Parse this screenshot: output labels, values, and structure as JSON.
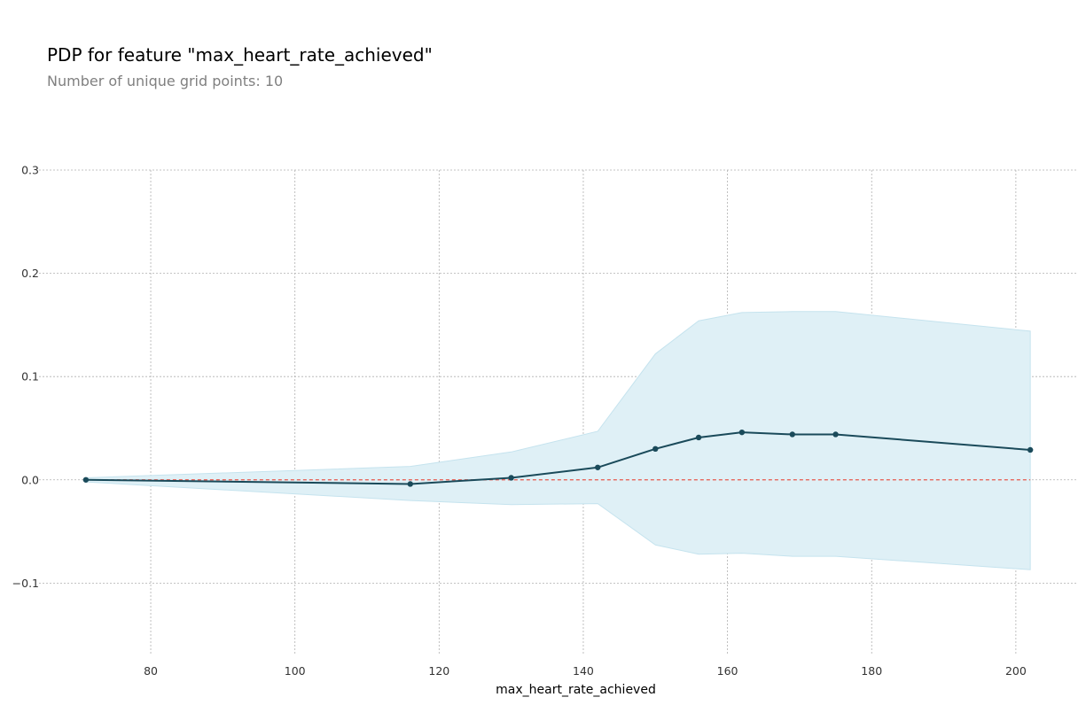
{
  "chart_data": {
    "type": "line",
    "title": "PDP for feature \"max_heart_rate_achieved\"",
    "subtitle": "Number of unique grid points: 10",
    "xlabel": "max_heart_rate_achieved",
    "ylabel": "",
    "xlim": [
      64.5,
      208.5
    ],
    "ylim": [
      -0.17,
      0.3
    ],
    "xticks": [
      80,
      100,
      120,
      140,
      160,
      180,
      200
    ],
    "yticks": [
      -0.1,
      0.0,
      0.1,
      0.2,
      0.3
    ],
    "ytick_labels": [
      "−0.1",
      "0.0",
      "0.1",
      "0.2",
      "0.3"
    ],
    "grid": true,
    "series": [
      {
        "x": [
          71,
          116,
          130,
          142,
          150,
          156,
          162,
          169,
          175,
          202
        ],
        "values": [
          0.0,
          -0.004,
          0.002,
          0.012,
          0.03,
          0.041,
          0.046,
          0.044,
          0.044,
          0.029
        ],
        "upper": [
          0.002,
          0.013,
          0.027,
          0.047,
          0.122,
          0.154,
          0.162,
          0.163,
          0.163,
          0.144
        ],
        "lower": [
          -0.002,
          -0.02,
          -0.024,
          -0.023,
          -0.063,
          -0.072,
          -0.071,
          -0.074,
          -0.074,
          -0.087
        ]
      }
    ],
    "baseline": 0.0,
    "colors": {
      "line": "#1a4a5a",
      "band": "#dff0f6",
      "band_edge": "#c5e3ee",
      "baseline": "#e8574b",
      "grid": "#b0b0b0"
    }
  }
}
